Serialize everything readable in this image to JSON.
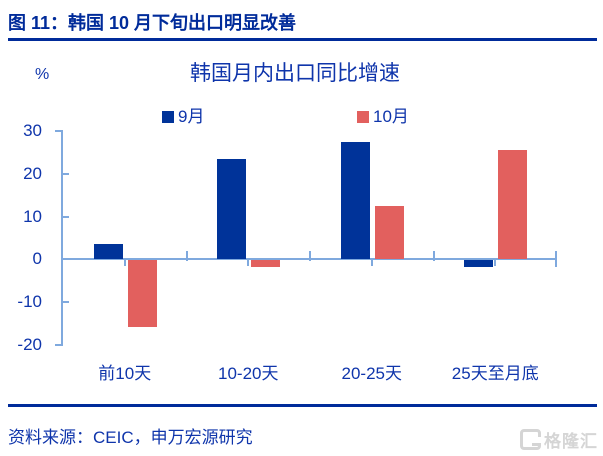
{
  "header": {
    "title": "图 11：韩国 10 月下旬出口明显改善"
  },
  "chart_data": {
    "type": "bar",
    "title": "韩国月内出口同比增速",
    "unit_label": "%",
    "categories": [
      "前10天",
      "10-20天",
      "20-25天",
      "25天至月底"
    ],
    "series": [
      {
        "name": "9月",
        "color": "#003399",
        "values": [
          3.5,
          23.5,
          27.5,
          -1.5
        ]
      },
      {
        "name": "10月",
        "color": "#e2605e",
        "values": [
          -15.5,
          -1.5,
          12.5,
          25.5
        ]
      }
    ],
    "ylim": [
      -20,
      30
    ],
    "yticks": [
      30,
      20,
      10,
      0,
      -10,
      -20
    ],
    "legend_position": "top",
    "grid": false,
    "colors": {
      "axis": "#7fa9de",
      "chart_text": "#0f35ab",
      "title_navy": "#002b9a"
    }
  },
  "footer": {
    "source": "资料来源：CEIC，申万宏源研究",
    "watermark": "格隆汇"
  }
}
